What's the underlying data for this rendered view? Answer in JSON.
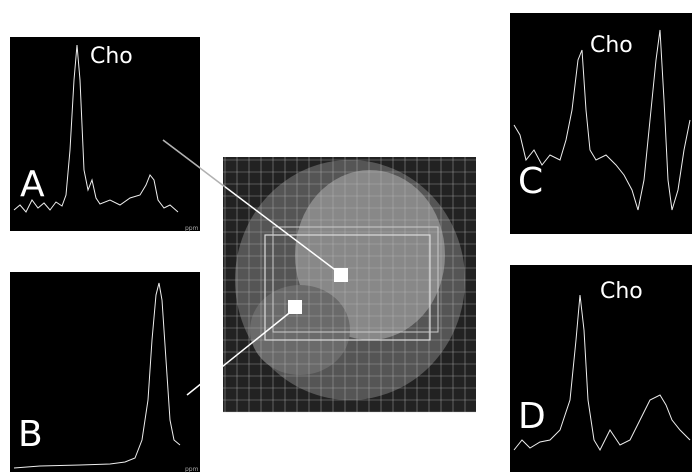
{
  "panels": [
    {
      "label": "A",
      "peak": "Cho",
      "axis": "ppm"
    },
    {
      "label": "B",
      "axis": "ppm"
    },
    {
      "label": "C",
      "peak": "Cho"
    },
    {
      "label": "D",
      "peak": "Cho"
    }
  ]
}
